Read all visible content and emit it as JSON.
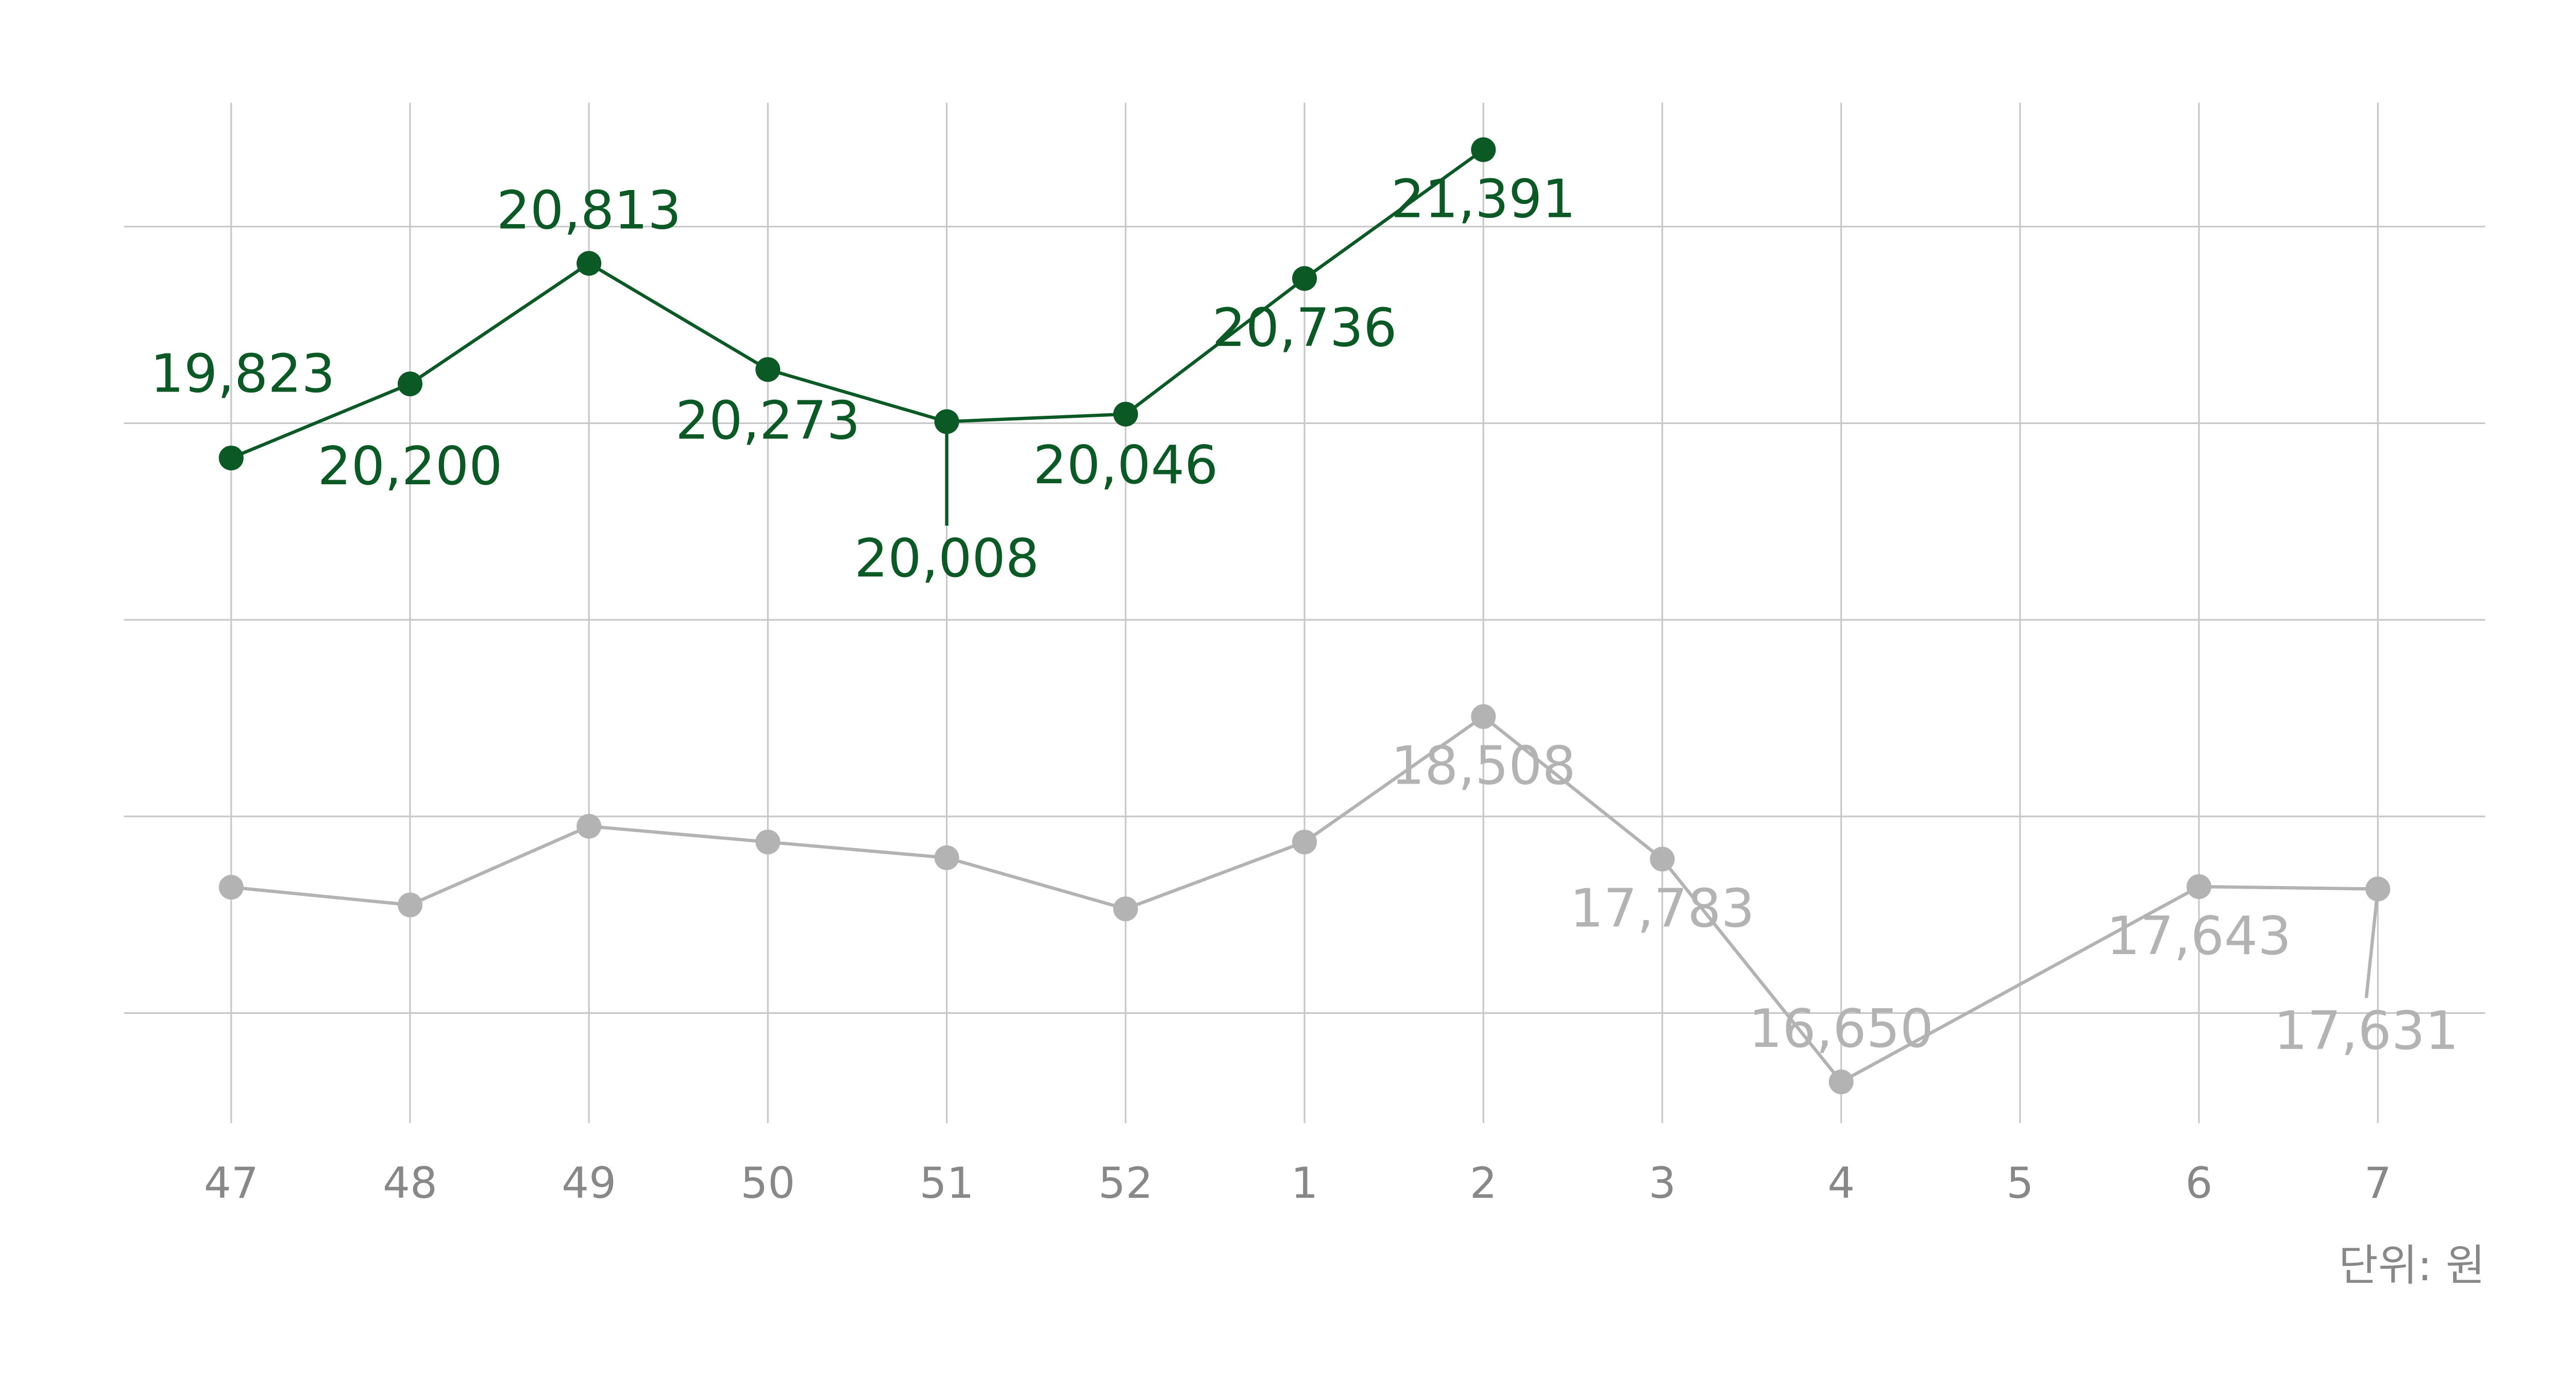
{
  "chart_data": {
    "type": "line",
    "categories": [
      "47",
      "48",
      "49",
      "50",
      "51",
      "52",
      "1",
      "2",
      "3",
      "4",
      "5",
      "6",
      "7"
    ],
    "series": [
      {
        "color": "#0b5a26",
        "values": [
          19823,
          20200,
          20813,
          20273,
          20008,
          20046,
          20736,
          21391,
          null,
          null,
          null,
          null,
          null
        ],
        "value_labels": [
          "19,823",
          "20,200",
          "20,813",
          "20,273",
          "20,008",
          "20,046",
          "20,736",
          "21,391",
          null,
          null,
          null,
          null,
          null
        ]
      },
      {
        "color": "#b3b3b3",
        "values": [
          17640,
          17550,
          17950,
          17870,
          17790,
          17530,
          17870,
          18508,
          17783,
          16650,
          null,
          17643,
          17631
        ],
        "value_labels": [
          null,
          null,
          null,
          null,
          null,
          null,
          null,
          "18,508",
          "17,783",
          "16,650",
          null,
          "17,643",
          "17,631"
        ]
      }
    ],
    "ylim": [
      16440,
      21630
    ],
    "yticks": [
      17000,
      18000,
      19000,
      20000,
      21000
    ],
    "grid": true,
    "unit_note": "단위: 원"
  }
}
